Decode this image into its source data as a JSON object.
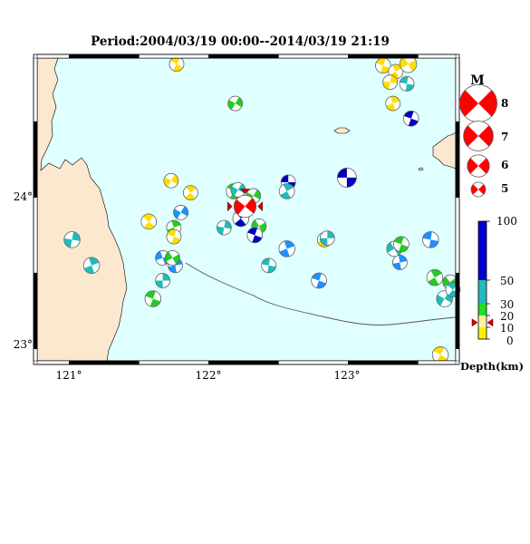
{
  "title": "Period:2004/03/19 00:00--2014/03/19 21:19",
  "map": {
    "lon_labels": [
      "121°",
      "122°",
      "123°"
    ],
    "lat_labels": [
      "24°",
      "23°"
    ],
    "colors": {
      "land": "#fbe8cf",
      "sea": "#e0ffff",
      "frame": "#000000"
    }
  },
  "magnitude_legend": {
    "heading": "M",
    "items": [
      {
        "label": "8",
        "value": 8
      },
      {
        "label": "7",
        "value": 7
      },
      {
        "label": "6",
        "value": 6
      },
      {
        "label": "5",
        "value": 5
      }
    ]
  },
  "depth_legend": {
    "title": "Depth(km)",
    "ticks": [
      "100",
      "50",
      "30",
      "20",
      "10",
      "0"
    ],
    "bands": [
      {
        "from": 0,
        "to": 10,
        "color": "#ffee00"
      },
      {
        "from": 10,
        "to": 20,
        "color": "#fff0a0"
      },
      {
        "from": 20,
        "to": 30,
        "color": "#22dd22"
      },
      {
        "from": 30,
        "to": 50,
        "color": "#22bbbb"
      },
      {
        "from": 50,
        "to": 100,
        "color": "#0000cc"
      }
    ],
    "marker_depth": 14
  },
  "events": [
    {
      "lon": 121.77,
      "lat": 24.88,
      "mag": 5.0,
      "depth": 8,
      "color": "#ffdd00",
      "rot": 30
    },
    {
      "lon": 122.19,
      "lat": 24.62,
      "mag": 5.0,
      "depth": 25,
      "color": "#22cc22",
      "rot": 120
    },
    {
      "lon": 123.25,
      "lat": 24.87,
      "mag": 5.1,
      "depth": 8,
      "color": "#ffdd00",
      "rot": 200
    },
    {
      "lon": 123.34,
      "lat": 24.83,
      "mag": 5.0,
      "depth": 8,
      "color": "#ffdd00",
      "rot": 60
    },
    {
      "lon": 123.43,
      "lat": 24.88,
      "mag": 5.3,
      "depth": 8,
      "color": "#ffdd00",
      "rot": 150
    },
    {
      "lon": 123.3,
      "lat": 24.76,
      "mag": 5.0,
      "depth": 8,
      "color": "#ffdd00",
      "rot": 100
    },
    {
      "lon": 123.42,
      "lat": 24.75,
      "mag": 5.0,
      "depth": 40,
      "color": "#22bbbb",
      "rot": 10
    },
    {
      "lon": 123.32,
      "lat": 24.62,
      "mag": 5.0,
      "depth": 8,
      "color": "#ffdd00",
      "rot": 250
    },
    {
      "lon": 123.45,
      "lat": 24.52,
      "mag": 5.1,
      "depth": 60,
      "color": "#0000bb",
      "rot": 200
    },
    {
      "lon": 121.73,
      "lat": 24.11,
      "mag": 5.0,
      "depth": 8,
      "color": "#ffdd00",
      "rot": 300
    },
    {
      "lon": 121.87,
      "lat": 24.03,
      "mag": 5.0,
      "depth": 8,
      "color": "#ffdd00",
      "rot": 50
    },
    {
      "lon": 121.8,
      "lat": 23.9,
      "mag": 5.0,
      "depth": 40,
      "color": "#1e90ff",
      "rot": 120
    },
    {
      "lon": 121.57,
      "lat": 23.84,
      "mag": 5.1,
      "depth": 8,
      "color": "#ffdd00",
      "rot": 220
    },
    {
      "lon": 121.75,
      "lat": 23.8,
      "mag": 5.0,
      "depth": 25,
      "color": "#22cc22",
      "rot": 70
    },
    {
      "lon": 121.75,
      "lat": 23.74,
      "mag": 5.0,
      "depth": 8,
      "color": "#ffdd00",
      "rot": 20
    },
    {
      "lon": 121.67,
      "lat": 23.6,
      "mag": 5.0,
      "depth": 40,
      "color": "#1e90ff",
      "rot": 160
    },
    {
      "lon": 121.76,
      "lat": 23.55,
      "mag": 5.0,
      "depth": 40,
      "color": "#1e90ff",
      "rot": 260
    },
    {
      "lon": 121.74,
      "lat": 23.6,
      "mag": 5.0,
      "depth": 25,
      "color": "#22cc22",
      "rot": 330
    },
    {
      "lon": 121.67,
      "lat": 23.45,
      "mag": 5.0,
      "depth": 40,
      "color": "#22bbbb",
      "rot": 90
    },
    {
      "lon": 121.6,
      "lat": 23.33,
      "mag": 5.2,
      "depth": 25,
      "color": "#22cc22",
      "rot": 200
    },
    {
      "lon": 121.02,
      "lat": 23.72,
      "mag": 5.2,
      "depth": 40,
      "color": "#22bbbb",
      "rot": 100
    },
    {
      "lon": 121.16,
      "lat": 23.55,
      "mag": 5.2,
      "depth": 40,
      "color": "#22bbbb",
      "rot": 70
    },
    {
      "lon": 122.18,
      "lat": 24.04,
      "mag": 5.1,
      "depth": 25,
      "color": "#22cc22",
      "rot": 30
    },
    {
      "lon": 122.21,
      "lat": 24.05,
      "mag": 5.0,
      "depth": 40,
      "color": "#22bbbb",
      "rot": 300
    },
    {
      "lon": 122.32,
      "lat": 24.01,
      "mag": 5.0,
      "depth": 25,
      "color": "#22cc22",
      "rot": 120
    },
    {
      "lon": 122.57,
      "lat": 24.1,
      "mag": 5.0,
      "depth": 60,
      "color": "#0000bb",
      "rot": 180
    },
    {
      "lon": 122.56,
      "lat": 24.04,
      "mag": 5.1,
      "depth": 40,
      "color": "#22bbbb",
      "rot": 60
    },
    {
      "lon": 122.99,
      "lat": 24.13,
      "mag": 5.6,
      "depth": 60,
      "color": "#0000bb",
      "rot": 180
    },
    {
      "lon": 122.23,
      "lat": 23.86,
      "mag": 5.2,
      "depth": 60,
      "color": "#0000bb",
      "rot": 230
    },
    {
      "lon": 122.11,
      "lat": 23.8,
      "mag": 5.0,
      "depth": 40,
      "color": "#22bbbb",
      "rot": 100
    },
    {
      "lon": 122.36,
      "lat": 23.81,
      "mag": 5.0,
      "depth": 25,
      "color": "#22cc22",
      "rot": 330
    },
    {
      "lon": 122.33,
      "lat": 23.75,
      "mag": 5.1,
      "depth": 60,
      "color": "#0000bb",
      "rot": 200
    },
    {
      "lon": 122.26,
      "lat": 23.94,
      "mag": 6.0,
      "depth": 14,
      "color": "#ff0000",
      "rot": 130
    },
    {
      "lon": 122.56,
      "lat": 23.66,
      "mag": 5.2,
      "depth": 40,
      "color": "#1e90ff",
      "rot": 70
    },
    {
      "lon": 122.43,
      "lat": 23.55,
      "mag": 5.0,
      "depth": 40,
      "color": "#22bbbb",
      "rot": 10
    },
    {
      "lon": 122.83,
      "lat": 23.72,
      "mag": 5.0,
      "depth": 8,
      "color": "#ffdd00",
      "rot": 250
    },
    {
      "lon": 122.85,
      "lat": 23.73,
      "mag": 5.0,
      "depth": 40,
      "color": "#22bbbb",
      "rot": 90
    },
    {
      "lon": 122.79,
      "lat": 23.45,
      "mag": 5.1,
      "depth": 40,
      "color": "#1e90ff",
      "rot": 200
    },
    {
      "lon": 123.33,
      "lat": 23.66,
      "mag": 5.1,
      "depth": 40,
      "color": "#22bbbb",
      "rot": 150
    },
    {
      "lon": 123.38,
      "lat": 23.69,
      "mag": 5.1,
      "depth": 25,
      "color": "#22cc22",
      "rot": 20
    },
    {
      "lon": 123.37,
      "lat": 23.57,
      "mag": 5.0,
      "depth": 40,
      "color": "#1e90ff",
      "rot": 260
    },
    {
      "lon": 123.59,
      "lat": 23.72,
      "mag": 5.2,
      "depth": 40,
      "color": "#1e90ff",
      "rot": 190
    },
    {
      "lon": 123.62,
      "lat": 23.47,
      "mag": 5.2,
      "depth": 25,
      "color": "#22cc22",
      "rot": 60
    },
    {
      "lon": 123.73,
      "lat": 23.44,
      "mag": 5.0,
      "depth": 25,
      "color": "#22cc22",
      "rot": 140
    },
    {
      "lon": 123.69,
      "lat": 23.33,
      "mag": 5.2,
      "depth": 40,
      "color": "#22bbbb",
      "rot": 300
    },
    {
      "lon": 123.75,
      "lat": 23.39,
      "mag": 5.0,
      "depth": 40,
      "color": "#22bbbb",
      "rot": 220
    },
    {
      "lon": 123.66,
      "lat": 22.96,
      "mag": 5.2,
      "depth": 8,
      "color": "#ffdd00",
      "rot": 30
    }
  ]
}
